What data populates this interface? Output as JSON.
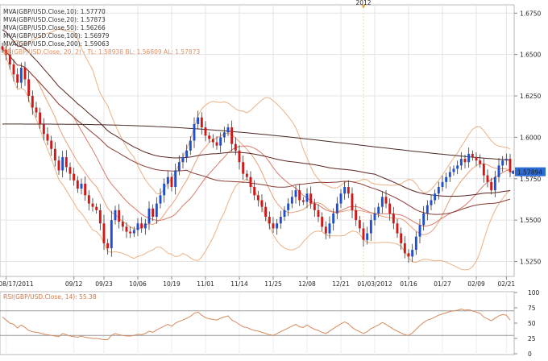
{
  "chart_data": {
    "type": "candlestick",
    "instrument": "GBP/USD",
    "top_marker": "2012",
    "legend": [
      {
        "text": "MVA(GBP/USD.Close,10): 1.57770",
        "color": "#e8a07a"
      },
      {
        "text": "MVA(GBP/USD.Close,20): 1.57873",
        "color": "#d97a6a"
      },
      {
        "text": "MVA(GBP/USD.Close,50): 1.56266",
        "color": "#8a3a34"
      },
      {
        "text": "MVA(GBP/USD.Close,100): 1.56979",
        "color": "#5a2420"
      },
      {
        "text": "MVA(GBP/USD.Close,200): 1.59063",
        "color": "#4a2a26"
      },
      {
        "text": "BB(GBP/USD.Close, 20, 2) - TL: 1.58938  BL: 1.56809  AL: 1.57873",
        "color": "#e0a070"
      }
    ],
    "price_axis": {
      "ticks": [
        "1.6750",
        "1.6500",
        "1.6250",
        "1.6000",
        "1.5750",
        "1.5500",
        "1.5250"
      ],
      "ylim": [
        1.516,
        1.68
      ],
      "last_price": "1.57894"
    },
    "date_ticks": [
      {
        "label": "08/17/2011",
        "i": 1
      },
      {
        "label": "09/12",
        "i": 19
      },
      {
        "label": "09/23",
        "i": 27
      },
      {
        "label": "10/06",
        "i": 36
      },
      {
        "label": "10/19",
        "i": 45
      },
      {
        "label": "11/01",
        "i": 54
      },
      {
        "label": "11/14",
        "i": 63
      },
      {
        "label": "11/25",
        "i": 72
      },
      {
        "label": "12/08",
        "i": 81
      },
      {
        "label": "12/21",
        "i": 90
      },
      {
        "label": "01/03/2012",
        "i": 99
      },
      {
        "label": "01/16",
        "i": 108
      },
      {
        "label": "01/27",
        "i": 117
      },
      {
        "label": "02/09",
        "i": 126
      },
      {
        "label": "02/21",
        "i": 134
      }
    ],
    "close": [
      1.653,
      1.65,
      1.644,
      1.638,
      1.633,
      1.642,
      1.635,
      1.625,
      1.618,
      1.615,
      1.608,
      1.602,
      1.598,
      1.593,
      1.586,
      1.58,
      1.588,
      1.582,
      1.578,
      1.574,
      1.569,
      1.572,
      1.565,
      1.56,
      1.558,
      1.556,
      1.548,
      1.536,
      1.533,
      1.55,
      1.556,
      1.549,
      1.546,
      1.543,
      1.542,
      1.544,
      1.548,
      1.545,
      1.548,
      1.557,
      1.552,
      1.56,
      1.565,
      1.572,
      1.576,
      1.57,
      1.58,
      1.585,
      1.588,
      1.592,
      1.598,
      1.608,
      1.612,
      1.606,
      1.601,
      1.599,
      1.597,
      1.595,
      1.6,
      1.603,
      1.606,
      1.596,
      1.592,
      1.585,
      1.578,
      1.576,
      1.57,
      1.565,
      1.562,
      1.558,
      1.552,
      1.548,
      1.545,
      1.548,
      1.552,
      1.556,
      1.56,
      1.564,
      1.568,
      1.562,
      1.561,
      1.566,
      1.56,
      1.556,
      1.552,
      1.546,
      1.542,
      1.548,
      1.554,
      1.56,
      1.566,
      1.57,
      1.566,
      1.556,
      1.55,
      1.545,
      1.538,
      1.542,
      1.55,
      1.554,
      1.558,
      1.564,
      1.56,
      1.554,
      1.548,
      1.542,
      1.536,
      1.53,
      1.528,
      1.532,
      1.54,
      1.547,
      1.554,
      1.559,
      1.562,
      1.566,
      1.57,
      1.573,
      1.576,
      1.579,
      1.581,
      1.583,
      1.587,
      1.585,
      1.59,
      1.588,
      1.586,
      1.584,
      1.577,
      1.573,
      1.568,
      1.576,
      1.583,
      1.586,
      1.587,
      1.5789
    ],
    "rsi": {
      "label": "RSI(GBP/USD.Close, 14): 55.38",
      "ticks": [
        "100",
        "75",
        "50",
        "25",
        "0"
      ],
      "levels": [
        70,
        30
      ],
      "values": [
        60,
        55,
        50,
        48,
        42,
        47,
        43,
        38,
        36,
        35,
        34,
        32,
        31,
        30,
        29,
        28,
        33,
        31,
        29,
        28,
        27,
        29,
        27,
        26,
        25,
        25,
        24,
        23,
        23,
        30,
        33,
        31,
        30,
        29,
        29,
        30,
        32,
        31,
        33,
        37,
        35,
        39,
        42,
        45,
        48,
        45,
        50,
        53,
        55,
        58,
        61,
        66,
        68,
        63,
        59,
        57,
        56,
        55,
        58,
        60,
        62,
        55,
        52,
        48,
        44,
        43,
        40,
        38,
        37,
        35,
        33,
        31,
        30,
        33,
        36,
        39,
        42,
        45,
        48,
        44,
        43,
        47,
        43,
        40,
        38,
        35,
        33,
        37,
        41,
        45,
        49,
        52,
        49,
        43,
        39,
        36,
        33,
        36,
        41,
        44,
        47,
        51,
        48,
        44,
        40,
        37,
        34,
        31,
        30,
        34,
        40,
        46,
        51,
        55,
        57,
        60,
        63,
        65,
        67,
        69,
        70,
        71,
        73,
        71,
        72,
        70,
        68,
        66,
        60,
        57,
        54,
        58,
        62,
        64,
        63,
        55
      ]
    }
  }
}
